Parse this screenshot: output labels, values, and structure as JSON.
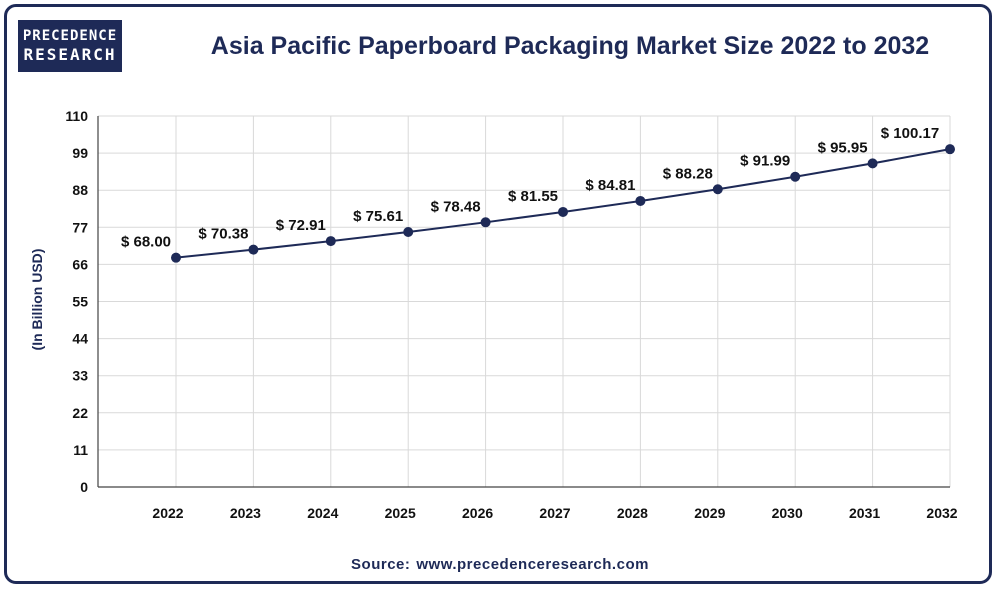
{
  "logo": {
    "line1": "PRECEDENCE",
    "line2": "RESEARCH"
  },
  "title": "Asia Pacific Paperboard Packaging Market Size 2022 to 2032",
  "source": {
    "label": "Source:",
    "url": "www.precedenceresearch.com"
  },
  "colors": {
    "navy": "#1e2a57",
    "grid": "#d9d9d9",
    "frame": "#1e2a57"
  },
  "chart_data": {
    "type": "line",
    "title": "Asia Pacific Paperboard Packaging Market Size 2022 to 2032",
    "ylabel": "(In Billion USD)",
    "xlabel": "",
    "ylim": [
      0,
      110
    ],
    "yticks": [
      0,
      11,
      22,
      33,
      44,
      55,
      66,
      77,
      88,
      99,
      110
    ],
    "grid": true,
    "categories": [
      "2022",
      "2023",
      "2024",
      "2025",
      "2026",
      "2027",
      "2028",
      "2029",
      "2030",
      "2031",
      "2032"
    ],
    "series": [
      {
        "values": [
          68.0,
          70.38,
          72.91,
          75.61,
          78.48,
          81.55,
          84.81,
          88.28,
          91.99,
          95.95,
          100.17
        ]
      }
    ],
    "data_labels": [
      "$ 68.00",
      "$ 70.38",
      "$ 72.91",
      "$ 75.61",
      "$ 78.48",
      "$ 81.55",
      "$ 84.81",
      "$ 88.28",
      "$ 91.99",
      "$ 95.95",
      "$ 100.17"
    ]
  }
}
